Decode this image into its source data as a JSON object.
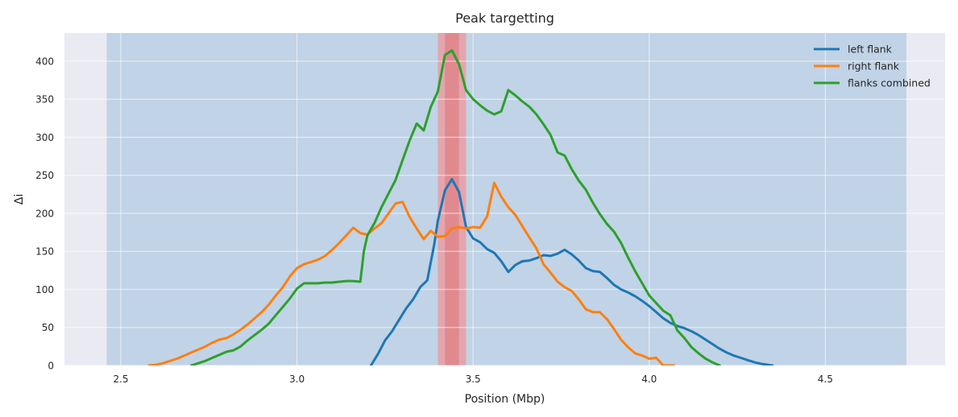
{
  "chart_data": {
    "type": "line",
    "title": "Peak targetting",
    "xlabel": "Position (Mbp)",
    "ylabel": "Δi",
    "xlim": [
      2.34,
      4.84
    ],
    "ylim": [
      0,
      437
    ],
    "xticks": [
      2.5,
      3.0,
      3.5,
      4.0,
      4.5
    ],
    "xtick_labels": [
      "2.5",
      "3.0",
      "3.5",
      "4.0",
      "4.5"
    ],
    "yticks": [
      0,
      50,
      100,
      150,
      200,
      250,
      300,
      350,
      400
    ],
    "ytick_labels": [
      "0",
      "50",
      "100",
      "150",
      "200",
      "250",
      "300",
      "350",
      "400"
    ],
    "grid": true,
    "legend_position": "top-right",
    "colors": {
      "plot_background": "#eaeaf2",
      "grid": "#ffffff",
      "blue_region": "#c1d3e6",
      "red_region_outer": "#e4a5ad",
      "red_region_inner": "#e08a90"
    },
    "regions": [
      {
        "x0": 2.46,
        "x1": 4.73,
        "color": "#c1d3e6"
      },
      {
        "x0": 3.4,
        "x1": 3.48,
        "color": "#e4a5ad"
      },
      {
        "x0": 3.42,
        "x1": 3.46,
        "color": "#e08a90"
      }
    ],
    "series": [
      {
        "name": "left flank",
        "color": "#1f77b4",
        "x": [
          3.21,
          3.23,
          3.25,
          3.27,
          3.29,
          3.31,
          3.33,
          3.35,
          3.37,
          3.39,
          3.4,
          3.42,
          3.44,
          3.46,
          3.48,
          3.5,
          3.52,
          3.54,
          3.56,
          3.58,
          3.6,
          3.62,
          3.64,
          3.66,
          3.68,
          3.7,
          3.72,
          3.74,
          3.76,
          3.78,
          3.8,
          3.82,
          3.84,
          3.86,
          3.88,
          3.9,
          3.92,
          3.94,
          3.96,
          3.98,
          4.0,
          4.02,
          4.04,
          4.06,
          4.08,
          4.1,
          4.12,
          4.14,
          4.16,
          4.18,
          4.2,
          4.22,
          4.24,
          4.26,
          4.28,
          4.3,
          4.32,
          4.35
        ],
        "y": [
          0,
          15,
          33,
          45,
          60,
          75,
          87,
          103,
          112,
          160,
          190,
          230,
          245,
          228,
          182,
          167,
          162,
          153,
          148,
          137,
          123,
          132,
          137,
          138,
          141,
          145,
          144,
          147,
          152,
          146,
          138,
          128,
          124,
          123,
          115,
          106,
          100,
          96,
          91,
          85,
          78,
          70,
          62,
          56,
          52,
          49,
          45,
          40,
          34,
          28,
          22,
          17,
          13,
          10,
          7,
          4,
          2,
          0
        ]
      },
      {
        "name": "right flank",
        "color": "#ff7f0e",
        "x": [
          2.58,
          2.6,
          2.62,
          2.64,
          2.66,
          2.68,
          2.7,
          2.72,
          2.74,
          2.76,
          2.78,
          2.8,
          2.82,
          2.84,
          2.86,
          2.88,
          2.9,
          2.92,
          2.94,
          2.96,
          2.98,
          3.0,
          3.02,
          3.04,
          3.06,
          3.08,
          3.1,
          3.12,
          3.14,
          3.16,
          3.18,
          3.2,
          3.22,
          3.24,
          3.26,
          3.28,
          3.3,
          3.32,
          3.34,
          3.36,
          3.38,
          3.4,
          3.42,
          3.44,
          3.46,
          3.48,
          3.5,
          3.52,
          3.54,
          3.56,
          3.58,
          3.6,
          3.62,
          3.64,
          3.66,
          3.68,
          3.7,
          3.72,
          3.74,
          3.76,
          3.78,
          3.8,
          3.82,
          3.84,
          3.86,
          3.88,
          3.9,
          3.92,
          3.94,
          3.96,
          3.98,
          4.0,
          4.02,
          4.04,
          4.06,
          4.07
        ],
        "y": [
          0,
          1,
          3,
          6,
          9,
          13,
          17,
          21,
          25,
          30,
          34,
          36,
          41,
          47,
          54,
          62,
          70,
          80,
          92,
          103,
          117,
          128,
          133,
          136,
          139,
          144,
          152,
          161,
          171,
          181,
          174,
          172,
          180,
          187,
          200,
          213,
          215,
          195,
          180,
          166,
          177,
          169,
          170,
          180,
          182,
          180,
          182,
          181,
          196,
          240,
          222,
          208,
          198,
          183,
          168,
          154,
          133,
          122,
          110,
          103,
          98,
          87,
          74,
          70,
          70,
          61,
          48,
          34,
          24,
          16,
          13,
          9,
          10,
          0,
          0,
          0
        ]
      },
      {
        "name": "flanks combined",
        "color": "#2ca02c",
        "x": [
          2.7,
          2.72,
          2.74,
          2.76,
          2.78,
          2.8,
          2.82,
          2.84,
          2.86,
          2.88,
          2.9,
          2.92,
          2.94,
          2.96,
          2.98,
          3.0,
          3.02,
          3.04,
          3.06,
          3.08,
          3.1,
          3.12,
          3.14,
          3.16,
          3.18,
          3.19,
          3.2,
          3.22,
          3.24,
          3.26,
          3.28,
          3.3,
          3.32,
          3.34,
          3.36,
          3.38,
          3.4,
          3.42,
          3.44,
          3.46,
          3.48,
          3.5,
          3.52,
          3.54,
          3.56,
          3.58,
          3.6,
          3.62,
          3.64,
          3.66,
          3.68,
          3.7,
          3.72,
          3.74,
          3.76,
          3.78,
          3.8,
          3.82,
          3.84,
          3.86,
          3.88,
          3.9,
          3.92,
          3.94,
          3.96,
          3.98,
          4.0,
          4.02,
          4.04,
          4.06,
          4.08,
          4.1,
          4.12,
          4.14,
          4.16,
          4.18,
          4.2
        ],
        "y": [
          0,
          3,
          6,
          10,
          14,
          18,
          20,
          25,
          33,
          40,
          47,
          55,
          66,
          77,
          88,
          101,
          108,
          108,
          108,
          109,
          109,
          110,
          111,
          111,
          110,
          150,
          171,
          187,
          208,
          226,
          244,
          270,
          296,
          318,
          309,
          340,
          360,
          408,
          414,
          396,
          362,
          350,
          342,
          335,
          330,
          334,
          362,
          355,
          347,
          340,
          330,
          317,
          303,
          280,
          276,
          258,
          243,
          231,
          214,
          199,
          186,
          176,
          161,
          142,
          124,
          108,
          92,
          82,
          72,
          66,
          46,
          36,
          24,
          16,
          9,
          4,
          0
        ]
      }
    ]
  }
}
